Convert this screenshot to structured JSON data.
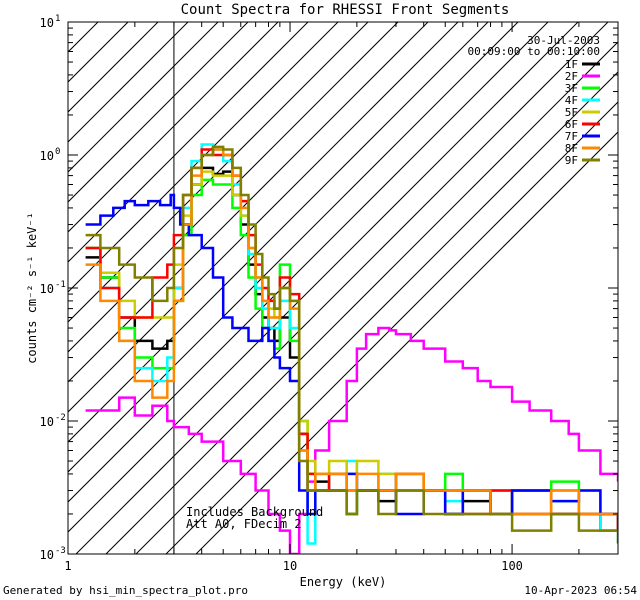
{
  "chart_data": {
    "type": "line",
    "title": "Count Spectra for RHESSI Front Segments",
    "xlabel": "Energy (keV)",
    "ylabel": "counts cm⁻² s⁻¹ keV⁻¹",
    "xscale": "log",
    "yscale": "log",
    "xlim": [
      1,
      300
    ],
    "ylim": [
      0.001,
      10
    ],
    "x_tick_labels": [
      {
        "value": 1,
        "label": "1"
      },
      {
        "value": 10,
        "label": "10"
      },
      {
        "value": 100,
        "label": "100"
      }
    ],
    "y_tick_labels": [
      {
        "value": 10,
        "base": "10",
        "exp": "1"
      },
      {
        "value": 1,
        "base": "10",
        "exp": "0"
      },
      {
        "value": 0.1,
        "base": "10",
        "exp": "-1"
      },
      {
        "value": 0.01,
        "base": "10",
        "exp": "-2"
      },
      {
        "value": 0.001,
        "base": "10",
        "exp": "-3"
      }
    ],
    "legend_header": [
      "30-Jul-2003",
      "00:09:00 to 00:10:00"
    ],
    "legend_position": "top-right",
    "shaded_region_upper_kev": 3,
    "annotations": [
      "Includes Background",
      "Att A0, FDecim 2"
    ],
    "series": [
      {
        "name": "1F",
        "color": "#000000",
        "x": [
          1.2,
          1.4,
          1.7,
          2.0,
          2.4,
          2.8,
          3.0,
          3.3,
          3.6,
          4.0,
          4.5,
          5.0,
          5.5,
          6.0,
          6.5,
          7.0,
          7.5,
          8.0,
          8.5,
          9.0,
          10.0,
          11.0,
          12.0,
          13.0,
          15.0,
          18.0,
          20.0,
          25.0,
          30.0,
          40.0,
          50.0,
          60.0,
          80.0,
          100.0,
          150.0,
          200.0,
          250.0,
          300.0
        ],
        "y": [
          0.17,
          0.12,
          0.06,
          0.04,
          0.035,
          0.04,
          0.1,
          0.3,
          0.6,
          0.8,
          0.72,
          0.75,
          0.5,
          0.3,
          0.15,
          0.09,
          0.06,
          0.05,
          0.04,
          0.06,
          0.03,
          0.008,
          0.003,
          0.0035,
          0.003,
          0.002,
          0.003,
          0.0025,
          0.003,
          0.003,
          0.002,
          0.0025,
          0.002,
          0.003,
          0.002,
          0.002,
          0.0015,
          0.002
        ]
      },
      {
        "name": "2F",
        "color": "#ff00ff",
        "x": [
          1.2,
          1.4,
          1.7,
          2.0,
          2.4,
          2.8,
          3.0,
          3.5,
          4.0,
          5.0,
          6.0,
          7.0,
          8.0,
          9.0,
          10.0,
          11.0,
          12.0,
          13.0,
          15.0,
          18.0,
          20.0,
          22.0,
          25.0,
          28.0,
          30.0,
          35.0,
          40.0,
          50.0,
          60.0,
          70.0,
          80.0,
          100.0,
          120.0,
          150.0,
          180.0,
          200.0,
          250.0,
          300.0
        ],
        "y": [
          0.012,
          0.012,
          0.015,
          0.011,
          0.013,
          0.01,
          0.009,
          0.008,
          0.007,
          0.005,
          0.004,
          0.003,
          0.002,
          0.0015,
          0.001,
          0.002,
          0.0035,
          0.006,
          0.01,
          0.02,
          0.035,
          0.045,
          0.05,
          0.048,
          0.045,
          0.04,
          0.035,
          0.028,
          0.025,
          0.02,
          0.018,
          0.014,
          0.012,
          0.01,
          0.008,
          0.006,
          0.004,
          0.0035
        ]
      },
      {
        "name": "3F",
        "color": "#00ff00",
        "x": [
          1.2,
          1.4,
          1.7,
          2.0,
          2.4,
          2.8,
          3.0,
          3.3,
          3.6,
          4.0,
          4.5,
          5.0,
          5.5,
          6.0,
          6.5,
          7.0,
          7.5,
          8.0,
          8.5,
          9.0,
          10.0,
          11.0,
          12.0,
          13.0,
          15.0,
          18.0,
          20.0,
          25.0,
          30.0,
          40.0,
          50.0,
          60.0,
          80.0,
          100.0,
          150.0,
          200.0,
          250.0,
          300.0
        ],
        "y": [
          0.2,
          0.12,
          0.05,
          0.03,
          0.025,
          0.025,
          0.08,
          0.25,
          0.5,
          0.65,
          0.6,
          0.6,
          0.4,
          0.25,
          0.12,
          0.07,
          0.05,
          0.04,
          0.035,
          0.15,
          0.04,
          0.01,
          0.004,
          0.003,
          0.004,
          0.002,
          0.003,
          0.003,
          0.004,
          0.003,
          0.004,
          0.003,
          0.002,
          0.003,
          0.0035,
          0.003,
          0.002,
          0.002
        ]
      },
      {
        "name": "4F",
        "color": "#00ffff",
        "x": [
          1.2,
          1.4,
          1.7,
          2.0,
          2.4,
          2.8,
          3.0,
          3.3,
          3.6,
          4.0,
          4.5,
          5.0,
          5.5,
          6.0,
          6.5,
          7.0,
          7.5,
          8.0,
          8.5,
          9.0,
          10.0,
          11.0,
          12.0,
          13.0,
          15.0,
          18.0,
          20.0,
          25.0,
          30.0,
          40.0,
          50.0,
          60.0,
          80.0,
          100.0,
          150.0,
          200.0,
          250.0,
          300.0
        ],
        "y": [
          0.2,
          0.1,
          0.04,
          0.025,
          0.02,
          0.03,
          0.1,
          0.4,
          0.9,
          1.2,
          1.1,
          0.9,
          0.6,
          0.35,
          0.18,
          0.1,
          0.07,
          0.05,
          0.05,
          0.08,
          0.05,
          0.006,
          0.0012,
          0.004,
          0.003,
          0.005,
          0.003,
          0.004,
          0.003,
          0.003,
          0.0025,
          0.003,
          0.003,
          0.002,
          0.0025,
          0.002,
          0.0015,
          0.0012
        ]
      },
      {
        "name": "5F",
        "color": "#cccc00",
        "x": [
          1.2,
          1.4,
          1.7,
          2.0,
          2.4,
          2.8,
          3.0,
          3.3,
          3.6,
          4.0,
          4.5,
          5.0,
          5.5,
          6.0,
          6.5,
          7.0,
          7.5,
          8.0,
          8.5,
          9.0,
          10.0,
          11.0,
          12.0,
          13.0,
          15.0,
          18.0,
          20.0,
          25.0,
          30.0,
          40.0,
          50.0,
          60.0,
          80.0,
          100.0,
          150.0,
          200.0,
          250.0,
          300.0
        ],
        "y": [
          0.2,
          0.13,
          0.08,
          0.06,
          0.06,
          0.06,
          0.15,
          0.35,
          0.6,
          0.75,
          0.7,
          0.7,
          0.5,
          0.35,
          0.2,
          0.12,
          0.08,
          0.07,
          0.06,
          0.1,
          0.08,
          0.01,
          0.005,
          0.004,
          0.005,
          0.004,
          0.005,
          0.004,
          0.004,
          0.003,
          0.003,
          0.003,
          0.003,
          0.002,
          0.003,
          0.002,
          0.002,
          0.002
        ]
      },
      {
        "name": "6F",
        "color": "#ff0000",
        "x": [
          1.2,
          1.4,
          1.7,
          2.0,
          2.4,
          2.8,
          3.0,
          3.3,
          3.6,
          4.0,
          4.5,
          5.0,
          5.5,
          6.0,
          6.5,
          7.0,
          7.5,
          8.0,
          8.5,
          9.0,
          10.0,
          11.0,
          12.0,
          13.0,
          15.0,
          18.0,
          20.0,
          25.0,
          30.0,
          40.0,
          50.0,
          60.0,
          80.0,
          100.0,
          150.0,
          200.0,
          250.0,
          300.0
        ],
        "y": [
          0.2,
          0.1,
          0.06,
          0.06,
          0.12,
          0.15,
          0.25,
          0.5,
          0.8,
          1.1,
          1.0,
          1.0,
          0.7,
          0.45,
          0.25,
          0.15,
          0.1,
          0.08,
          0.07,
          0.12,
          0.09,
          0.008,
          0.004,
          0.003,
          0.004,
          0.003,
          0.003,
          0.003,
          0.004,
          0.003,
          0.003,
          0.002,
          0.003,
          0.002,
          0.002,
          0.002,
          0.002,
          0.0015
        ]
      },
      {
        "name": "7F",
        "color": "#0000ff",
        "x": [
          1.2,
          1.4,
          1.6,
          1.8,
          2.0,
          2.3,
          2.6,
          2.9,
          3.0,
          3.2,
          3.5,
          4.0,
          4.5,
          5.0,
          5.5,
          6.0,
          6.5,
          7.0,
          7.5,
          8.0,
          8.5,
          9.0,
          10.0,
          11.0,
          12.0,
          13.0,
          15.0,
          18.0,
          20.0,
          25.0,
          30.0,
          40.0,
          50.0,
          60.0,
          80.0,
          100.0,
          150.0,
          200.0,
          250.0,
          300.0
        ],
        "y": [
          0.3,
          0.35,
          0.4,
          0.45,
          0.42,
          0.45,
          0.42,
          0.5,
          0.4,
          0.3,
          0.25,
          0.2,
          0.12,
          0.06,
          0.05,
          0.05,
          0.04,
          0.04,
          0.05,
          0.04,
          0.03,
          0.025,
          0.02,
          0.003,
          0.002,
          0.003,
          0.003,
          0.004,
          0.003,
          0.003,
          0.002,
          0.003,
          0.002,
          0.003,
          0.002,
          0.003,
          0.0025,
          0.003,
          0.002,
          0.002
        ]
      },
      {
        "name": "8F",
        "color": "#ff8800",
        "x": [
          1.2,
          1.4,
          1.7,
          2.0,
          2.4,
          2.8,
          3.0,
          3.3,
          3.6,
          4.0,
          4.5,
          5.0,
          5.5,
          6.0,
          6.5,
          7.0,
          7.5,
          8.0,
          8.5,
          9.0,
          10.0,
          11.0,
          12.0,
          13.0,
          15.0,
          18.0,
          20.0,
          25.0,
          30.0,
          40.0,
          50.0,
          60.0,
          80.0,
          100.0,
          150.0,
          200.0,
          250.0,
          300.0
        ],
        "y": [
          0.15,
          0.08,
          0.04,
          0.02,
          0.015,
          0.02,
          0.08,
          0.3,
          0.7,
          1.0,
          1.1,
          1.0,
          0.7,
          0.4,
          0.2,
          0.12,
          0.08,
          0.06,
          0.06,
          0.1,
          0.07,
          0.006,
          0.003,
          0.004,
          0.004,
          0.003,
          0.004,
          0.003,
          0.004,
          0.003,
          0.003,
          0.003,
          0.002,
          0.002,
          0.003,
          0.002,
          0.002,
          0.002
        ]
      },
      {
        "name": "9F",
        "color": "#808000",
        "x": [
          1.2,
          1.4,
          1.7,
          2.0,
          2.4,
          2.8,
          3.0,
          3.3,
          3.6,
          4.0,
          4.5,
          5.0,
          5.5,
          6.0,
          6.5,
          7.0,
          7.5,
          8.0,
          8.5,
          9.0,
          10.0,
          11.0,
          12.0,
          13.0,
          15.0,
          18.0,
          20.0,
          25.0,
          30.0,
          40.0,
          50.0,
          60.0,
          80.0,
          100.0,
          150.0,
          200.0,
          250.0,
          300.0
        ],
        "y": [
          0.25,
          0.2,
          0.15,
          0.12,
          0.08,
          0.1,
          0.2,
          0.5,
          0.8,
          1.0,
          1.15,
          1.1,
          0.8,
          0.5,
          0.3,
          0.18,
          0.12,
          0.09,
          0.07,
          0.1,
          0.08,
          0.005,
          0.003,
          0.003,
          0.003,
          0.002,
          0.003,
          0.002,
          0.003,
          0.002,
          0.002,
          0.002,
          0.002,
          0.0015,
          0.002,
          0.0015,
          0.0015,
          0.0012
        ]
      }
    ]
  },
  "footer": {
    "generated_by": "Generated by hsi_min_spectra_plot.pro",
    "date": "10-Apr-2023 06:54"
  }
}
